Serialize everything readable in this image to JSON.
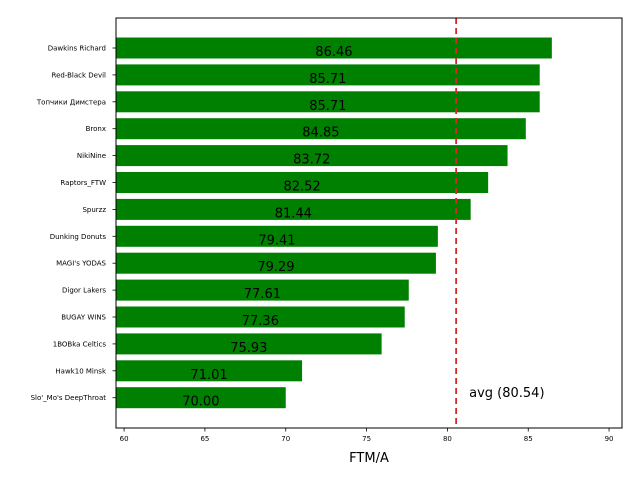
{
  "chart_data": {
    "type": "bar",
    "orientation": "horizontal",
    "categories": [
      "Dawkins Richard",
      "Red-Black Devil",
      "Топчики Димстера",
      "Bronx",
      "NikiNine",
      "Raptors_FTW",
      "Spurzz",
      "Dunking Donuts",
      "MAGI's YODAS",
      "Digor Lakers",
      "BUGAY WINS",
      "1BOBka Celtics",
      "Hawk10 Minsk",
      "Slo'_Mo's DeepThroat"
    ],
    "values": [
      86.46,
      85.71,
      85.71,
      84.85,
      83.72,
      82.52,
      81.44,
      79.41,
      79.29,
      77.61,
      77.36,
      75.93,
      71.01,
      70.0
    ],
    "value_labels": [
      "86.46",
      "85.71",
      "85.71",
      "84.85",
      "83.72",
      "82.52",
      "81.44",
      "79.41",
      "79.29",
      "77.61",
      "77.36",
      "75.93",
      "71.01",
      "70.00"
    ],
    "xlabel": "FTM/A",
    "xlim": [
      59.5,
      90.8
    ],
    "xticks": [
      60,
      65,
      70,
      75,
      80,
      85,
      90
    ],
    "bar_color": "#008000",
    "average": {
      "value": 80.54,
      "label": "avg (80.54)",
      "color": "#d62728"
    }
  }
}
